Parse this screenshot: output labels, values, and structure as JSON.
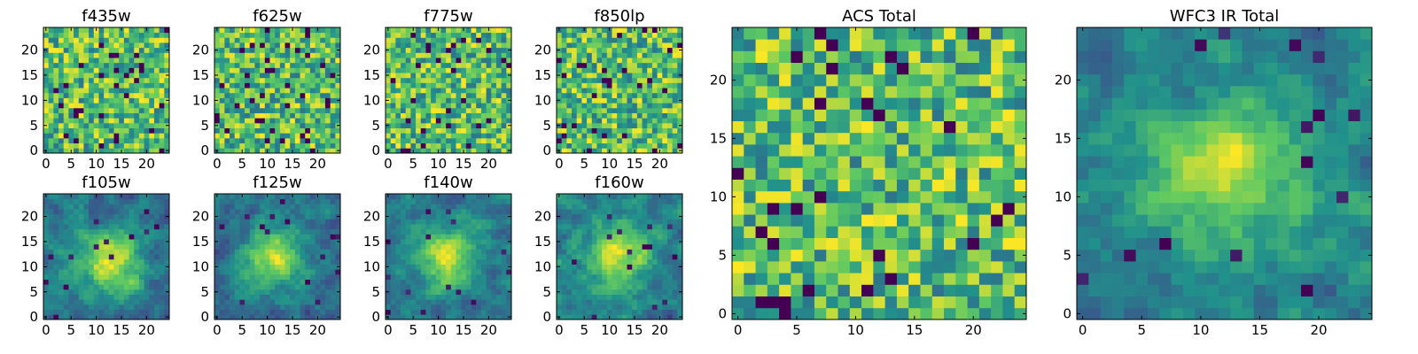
{
  "figure": {
    "colormap": "viridis",
    "colormap_stops": [
      "#440154",
      "#3b528b",
      "#21918c",
      "#5ec962",
      "#fde725"
    ]
  },
  "chart_data": [
    {
      "type": "heatmap",
      "title": "f435w",
      "grid_size": [
        25,
        25
      ],
      "xlim": [
        0,
        24
      ],
      "ylim": [
        0,
        24
      ],
      "xticks": [
        0,
        5,
        10,
        15,
        20
      ],
      "yticks": [
        0,
        5,
        10,
        15,
        20
      ],
      "pattern": "noise",
      "seed": 11,
      "center": [
        12,
        12
      ]
    },
    {
      "type": "heatmap",
      "title": "f625w",
      "grid_size": [
        25,
        25
      ],
      "xlim": [
        0,
        24
      ],
      "ylim": [
        0,
        24
      ],
      "xticks": [
        0,
        5,
        10,
        15,
        20
      ],
      "yticks": [
        0,
        5,
        10,
        15,
        20
      ],
      "pattern": "noise",
      "seed": 23,
      "center": [
        12,
        12
      ]
    },
    {
      "type": "heatmap",
      "title": "f775w",
      "grid_size": [
        25,
        25
      ],
      "xlim": [
        0,
        24
      ],
      "ylim": [
        0,
        24
      ],
      "xticks": [
        0,
        5,
        10,
        15,
        20
      ],
      "yticks": [
        0,
        5,
        10,
        15,
        20
      ],
      "pattern": "noise",
      "seed": 37,
      "center": [
        12,
        12
      ]
    },
    {
      "type": "heatmap",
      "title": "f850lp",
      "grid_size": [
        25,
        25
      ],
      "xlim": [
        0,
        24
      ],
      "ylim": [
        0,
        24
      ],
      "xticks": [
        0,
        5,
        10,
        15,
        20
      ],
      "yticks": [
        0,
        5,
        10,
        15,
        20
      ],
      "pattern": "noise",
      "seed": 41,
      "center": [
        12,
        12
      ]
    },
    {
      "type": "heatmap",
      "title": "f105w",
      "grid_size": [
        25,
        25
      ],
      "xlim": [
        0,
        24
      ],
      "ylim": [
        0,
        24
      ],
      "xticks": [
        0,
        5,
        10,
        15,
        20
      ],
      "yticks": [
        0,
        5,
        10,
        15,
        20
      ],
      "pattern": "blob",
      "seed": 53,
      "center": [
        13,
        11
      ]
    },
    {
      "type": "heatmap",
      "title": "f125w",
      "grid_size": [
        25,
        25
      ],
      "xlim": [
        0,
        24
      ],
      "ylim": [
        0,
        24
      ],
      "xticks": [
        0,
        5,
        10,
        15,
        20
      ],
      "yticks": [
        0,
        5,
        10,
        15,
        20
      ],
      "pattern": "blob",
      "seed": 67,
      "center": [
        11,
        12
      ]
    },
    {
      "type": "heatmap",
      "title": "f140w",
      "grid_size": [
        25,
        25
      ],
      "xlim": [
        0,
        24
      ],
      "ylim": [
        0,
        24
      ],
      "xticks": [
        0,
        5,
        10,
        15,
        20
      ],
      "yticks": [
        0,
        5,
        10,
        15,
        20
      ],
      "pattern": "blob",
      "seed": 71,
      "center": [
        12,
        12
      ]
    },
    {
      "type": "heatmap",
      "title": "f160w",
      "grid_size": [
        25,
        25
      ],
      "xlim": [
        0,
        24
      ],
      "ylim": [
        0,
        24
      ],
      "xticks": [
        0,
        5,
        10,
        15,
        20
      ],
      "yticks": [
        0,
        5,
        10,
        15,
        20
      ],
      "pattern": "blob",
      "seed": 83,
      "center": [
        12,
        12
      ]
    },
    {
      "type": "heatmap",
      "title": "ACS Total",
      "grid_size": [
        25,
        25
      ],
      "xlim": [
        0,
        24
      ],
      "ylim": [
        0,
        24
      ],
      "xticks": [
        0,
        5,
        10,
        15,
        20
      ],
      "yticks": [
        0,
        5,
        10,
        15,
        20
      ],
      "pattern": "noise",
      "seed": 97,
      "center": [
        12,
        12
      ]
    },
    {
      "type": "heatmap",
      "title": "WFC3 IR Total",
      "grid_size": [
        25,
        25
      ],
      "xlim": [
        0,
        24
      ],
      "ylim": [
        0,
        24
      ],
      "xticks": [
        0,
        5,
        10,
        15,
        20
      ],
      "yticks": [
        0,
        5,
        10,
        15,
        20
      ],
      "pattern": "blob",
      "seed": 109,
      "center": [
        12,
        12
      ]
    }
  ]
}
